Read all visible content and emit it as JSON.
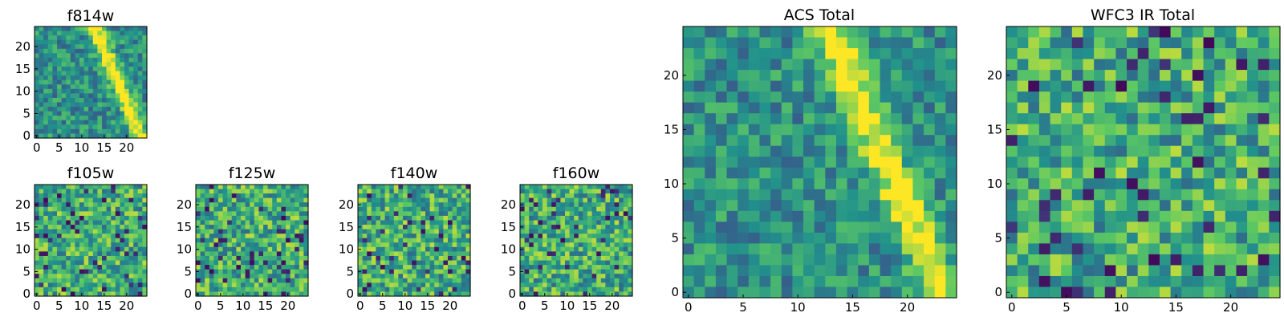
{
  "figure": {
    "colormap": "viridis",
    "colormap_stops": [
      "#440154",
      "#3b528b",
      "#21918c",
      "#5ec962",
      "#fde725"
    ]
  },
  "chart_data": [
    {
      "type": "heatmap",
      "title": "f814w",
      "grid": 25,
      "extent": [
        0,
        24
      ],
      "seed": 11,
      "feature": "diagonal-streak",
      "xticks": [
        "0",
        "5",
        "10",
        "15",
        "20"
      ],
      "yticks": [
        "0",
        "5",
        "10",
        "15",
        "20"
      ]
    },
    {
      "type": "heatmap",
      "title": "f105w",
      "grid": 25,
      "extent": [
        0,
        24
      ],
      "seed": 21,
      "feature": "noise",
      "xticks": [
        "0",
        "5",
        "10",
        "15",
        "20"
      ],
      "yticks": [
        "0",
        "5",
        "10",
        "15",
        "20"
      ]
    },
    {
      "type": "heatmap",
      "title": "f125w",
      "grid": 25,
      "extent": [
        0,
        24
      ],
      "seed": 31,
      "feature": "noise",
      "xticks": [
        "0",
        "5",
        "10",
        "15",
        "20"
      ],
      "yticks": [
        "0",
        "5",
        "10",
        "15",
        "20"
      ]
    },
    {
      "type": "heatmap",
      "title": "f140w",
      "grid": 25,
      "extent": [
        0,
        24
      ],
      "seed": 41,
      "feature": "noise",
      "xticks": [
        "0",
        "5",
        "10",
        "15",
        "20"
      ],
      "yticks": [
        "0",
        "5",
        "10",
        "15",
        "20"
      ]
    },
    {
      "type": "heatmap",
      "title": "f160w",
      "grid": 25,
      "extent": [
        0,
        24
      ],
      "seed": 51,
      "feature": "noise",
      "xticks": [
        "0",
        "5",
        "10",
        "15",
        "20"
      ],
      "yticks": [
        "0",
        "5",
        "10",
        "15",
        "20"
      ]
    },
    {
      "type": "heatmap",
      "title": "ACS Total",
      "grid": 25,
      "extent": [
        0,
        24
      ],
      "seed": 61,
      "feature": "diagonal-streak",
      "xticks": [
        "0",
        "5",
        "10",
        "15",
        "20"
      ],
      "yticks": [
        "0",
        "5",
        "10",
        "15",
        "20"
      ]
    },
    {
      "type": "heatmap",
      "title": "WFC3 IR Total",
      "grid": 25,
      "extent": [
        0,
        24
      ],
      "seed": 71,
      "feature": "noise",
      "xticks": [
        "0",
        "5",
        "10",
        "15",
        "20"
      ],
      "yticks": [
        "0",
        "5",
        "10",
        "15",
        "20"
      ]
    }
  ]
}
